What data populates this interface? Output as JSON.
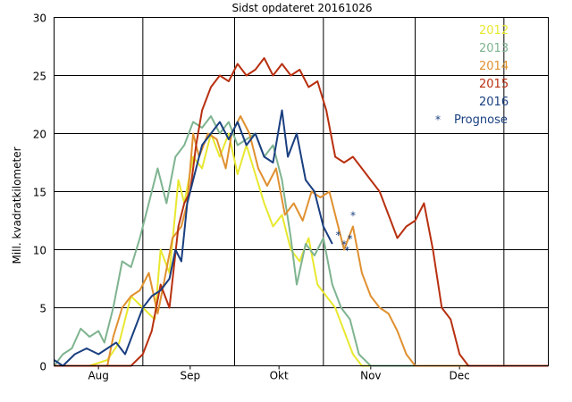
{
  "chart_data": {
    "type": "line",
    "title": "Sidst opdateret 20161026",
    "ylabel": "Mill. kvadratkilometer",
    "xlabel": "",
    "ylim": [
      0,
      30
    ],
    "yticks": [
      0,
      5,
      10,
      15,
      20,
      25,
      30
    ],
    "ytick_labels": [
      "0",
      "5",
      "10",
      "15",
      "20",
      "25",
      "30"
    ],
    "xlim": [
      "2016-07-17",
      "2016-12-31"
    ],
    "xticks": [
      "2016-08-01",
      "2016-09-01",
      "2016-10-01",
      "2016-11-01",
      "2016-12-01"
    ],
    "xtick_labels": [
      "Aug",
      "Sep",
      "Okt",
      "Nov",
      "Dec"
    ],
    "grid": true,
    "legend_position": "top-right",
    "series": [
      {
        "name": "2012",
        "color": "#e8e830",
        "points": [
          [
            "2016-07-17",
            0
          ],
          [
            "2016-07-23",
            0
          ],
          [
            "2016-07-29",
            0
          ],
          [
            "2016-08-04",
            0.5
          ],
          [
            "2016-08-08",
            2
          ],
          [
            "2016-08-12",
            6
          ],
          [
            "2016-08-16",
            5
          ],
          [
            "2016-08-20",
            4
          ],
          [
            "2016-08-22",
            10
          ],
          [
            "2016-08-25",
            8
          ],
          [
            "2016-08-28",
            16
          ],
          [
            "2016-08-30",
            14
          ],
          [
            "2016-09-02",
            18
          ],
          [
            "2016-09-05",
            17
          ],
          [
            "2016-09-08",
            20
          ],
          [
            "2016-09-11",
            18
          ],
          [
            "2016-09-14",
            20
          ],
          [
            "2016-09-17",
            16.5
          ],
          [
            "2016-09-20",
            19
          ],
          [
            "2016-09-23",
            16.5
          ],
          [
            "2016-09-26",
            14
          ],
          [
            "2016-09-29",
            12
          ],
          [
            "2016-10-02",
            13
          ],
          [
            "2016-10-05",
            10
          ],
          [
            "2016-10-08",
            9
          ],
          [
            "2016-10-11",
            11
          ],
          [
            "2016-10-14",
            7
          ],
          [
            "2016-10-17",
            6
          ],
          [
            "2016-10-20",
            5
          ],
          [
            "2016-10-23",
            3
          ],
          [
            "2016-10-26",
            1
          ],
          [
            "2016-10-29",
            0
          ],
          [
            "2016-11-05",
            0
          ],
          [
            "2016-12-31",
            0
          ]
        ]
      },
      {
        "name": "2013",
        "color": "#7fb490",
        "points": [
          [
            "2016-07-17",
            0
          ],
          [
            "2016-07-20",
            1
          ],
          [
            "2016-07-23",
            1.5
          ],
          [
            "2016-07-26",
            3.2
          ],
          [
            "2016-07-29",
            2.5
          ],
          [
            "2016-08-01",
            3
          ],
          [
            "2016-08-03",
            2
          ],
          [
            "2016-08-06",
            5
          ],
          [
            "2016-08-09",
            9
          ],
          [
            "2016-08-12",
            8.5
          ],
          [
            "2016-08-15",
            11
          ],
          [
            "2016-08-18",
            14
          ],
          [
            "2016-08-21",
            17
          ],
          [
            "2016-08-24",
            14
          ],
          [
            "2016-08-27",
            18
          ],
          [
            "2016-08-30",
            19
          ],
          [
            "2016-09-02",
            21
          ],
          [
            "2016-09-05",
            20.5
          ],
          [
            "2016-09-08",
            21.5
          ],
          [
            "2016-09-11",
            20
          ],
          [
            "2016-09-14",
            21
          ],
          [
            "2016-09-17",
            19
          ],
          [
            "2016-09-20",
            19.5
          ],
          [
            "2016-09-23",
            20
          ],
          [
            "2016-09-26",
            18
          ],
          [
            "2016-09-29",
            19
          ],
          [
            "2016-10-02",
            16
          ],
          [
            "2016-10-05",
            11
          ],
          [
            "2016-10-07",
            7
          ],
          [
            "2016-10-10",
            10.5
          ],
          [
            "2016-10-13",
            9.5
          ],
          [
            "2016-10-16",
            11
          ],
          [
            "2016-10-19",
            7
          ],
          [
            "2016-10-22",
            5
          ],
          [
            "2016-10-25",
            4
          ],
          [
            "2016-10-28",
            1
          ],
          [
            "2016-11-01",
            0
          ],
          [
            "2016-11-05",
            0
          ],
          [
            "2016-12-31",
            0
          ]
        ]
      },
      {
        "name": "2014",
        "color": "#e09030",
        "points": [
          [
            "2016-07-17",
            0
          ],
          [
            "2016-07-30",
            0
          ],
          [
            "2016-08-04",
            0
          ],
          [
            "2016-08-06",
            2.5
          ],
          [
            "2016-08-09",
            5
          ],
          [
            "2016-08-12",
            6
          ],
          [
            "2016-08-15",
            6.5
          ],
          [
            "2016-08-18",
            8
          ],
          [
            "2016-08-21",
            4.5
          ],
          [
            "2016-08-23",
            7
          ],
          [
            "2016-08-26",
            11
          ],
          [
            "2016-08-29",
            12
          ],
          [
            "2016-08-31",
            14
          ],
          [
            "2016-09-02",
            20
          ],
          [
            "2016-09-04",
            18
          ],
          [
            "2016-09-07",
            20
          ],
          [
            "2016-09-10",
            19.5
          ],
          [
            "2016-09-13",
            17
          ],
          [
            "2016-09-15",
            20
          ],
          [
            "2016-09-18",
            21.5
          ],
          [
            "2016-09-21",
            20
          ],
          [
            "2016-09-24",
            17
          ],
          [
            "2016-09-27",
            15.5
          ],
          [
            "2016-09-30",
            17
          ],
          [
            "2016-10-03",
            13
          ],
          [
            "2016-10-06",
            14
          ],
          [
            "2016-10-09",
            12.5
          ],
          [
            "2016-10-12",
            15
          ],
          [
            "2016-10-15",
            14.5
          ],
          [
            "2016-10-18",
            15
          ],
          [
            "2016-10-21",
            12
          ],
          [
            "2016-10-23",
            10
          ],
          [
            "2016-10-26",
            12
          ],
          [
            "2016-10-29",
            8
          ],
          [
            "2016-11-01",
            6
          ],
          [
            "2016-11-04",
            5
          ],
          [
            "2016-11-07",
            4.5
          ],
          [
            "2016-11-10",
            3
          ],
          [
            "2016-11-13",
            1
          ],
          [
            "2016-11-16",
            0
          ],
          [
            "2016-11-25",
            0
          ],
          [
            "2016-12-31",
            0
          ]
        ]
      },
      {
        "name": "2015",
        "color": "#b83010",
        "points": [
          [
            "2016-07-17",
            0
          ],
          [
            "2016-08-12",
            0
          ],
          [
            "2016-08-16",
            1
          ],
          [
            "2016-08-19",
            3
          ],
          [
            "2016-08-22",
            7
          ],
          [
            "2016-08-25",
            5
          ],
          [
            "2016-08-28",
            12
          ],
          [
            "2016-08-30",
            14
          ],
          [
            "2016-09-01",
            15
          ],
          [
            "2016-09-03",
            19
          ],
          [
            "2016-09-05",
            22
          ],
          [
            "2016-09-08",
            24
          ],
          [
            "2016-09-11",
            25
          ],
          [
            "2016-09-14",
            24.5
          ],
          [
            "2016-09-17",
            26
          ],
          [
            "2016-09-20",
            25
          ],
          [
            "2016-09-23",
            25.5
          ],
          [
            "2016-09-26",
            26.5
          ],
          [
            "2016-09-29",
            25
          ],
          [
            "2016-10-02",
            26
          ],
          [
            "2016-10-05",
            25
          ],
          [
            "2016-10-08",
            25.5
          ],
          [
            "2016-10-11",
            24
          ],
          [
            "2016-10-14",
            24.5
          ],
          [
            "2016-10-17",
            22
          ],
          [
            "2016-10-20",
            18
          ],
          [
            "2016-10-23",
            17.5
          ],
          [
            "2016-10-26",
            18
          ],
          [
            "2016-10-29",
            17
          ],
          [
            "2016-11-01",
            16
          ],
          [
            "2016-11-04",
            15
          ],
          [
            "2016-11-07",
            13
          ],
          [
            "2016-11-10",
            11
          ],
          [
            "2016-11-13",
            12
          ],
          [
            "2016-11-16",
            12.5
          ],
          [
            "2016-11-19",
            14
          ],
          [
            "2016-11-22",
            10
          ],
          [
            "2016-11-25",
            5
          ],
          [
            "2016-11-28",
            4
          ],
          [
            "2016-12-01",
            1
          ],
          [
            "2016-12-04",
            0
          ],
          [
            "2016-12-31",
            0
          ]
        ]
      },
      {
        "name": "2016",
        "color": "#1a3f80",
        "points": [
          [
            "2016-07-17",
            0.5
          ],
          [
            "2016-07-20",
            0
          ],
          [
            "2016-07-24",
            1
          ],
          [
            "2016-07-28",
            1.5
          ],
          [
            "2016-08-01",
            1
          ],
          [
            "2016-08-04",
            1.5
          ],
          [
            "2016-08-07",
            2
          ],
          [
            "2016-08-10",
            1
          ],
          [
            "2016-08-13",
            3
          ],
          [
            "2016-08-16",
            5
          ],
          [
            "2016-08-19",
            6
          ],
          [
            "2016-08-22",
            6.5
          ],
          [
            "2016-08-25",
            7.5
          ],
          [
            "2016-08-27",
            10
          ],
          [
            "2016-08-29",
            9
          ],
          [
            "2016-08-31",
            14
          ],
          [
            "2016-09-02",
            16
          ],
          [
            "2016-09-05",
            19
          ],
          [
            "2016-09-08",
            20
          ],
          [
            "2016-09-11",
            21
          ],
          [
            "2016-09-14",
            19.5
          ],
          [
            "2016-09-17",
            21
          ],
          [
            "2016-09-20",
            19
          ],
          [
            "2016-09-23",
            20
          ],
          [
            "2016-09-26",
            18
          ],
          [
            "2016-09-29",
            17.5
          ],
          [
            "2016-10-02",
            22
          ],
          [
            "2016-10-04",
            18
          ],
          [
            "2016-10-07",
            20
          ],
          [
            "2016-10-10",
            16
          ],
          [
            "2016-10-13",
            15
          ],
          [
            "2016-10-16",
            12
          ],
          [
            "2016-10-19",
            10.5
          ]
        ]
      }
    ],
    "prognose": {
      "name": "Prognose",
      "color": "#1a3f80",
      "marker": "*",
      "points": [
        [
          "2016-10-21",
          11.3
        ],
        [
          "2016-10-23",
          10.5
        ],
        [
          "2016-10-24",
          10
        ],
        [
          "2016-10-25",
          11
        ],
        [
          "2016-10-26",
          13
        ]
      ]
    }
  }
}
